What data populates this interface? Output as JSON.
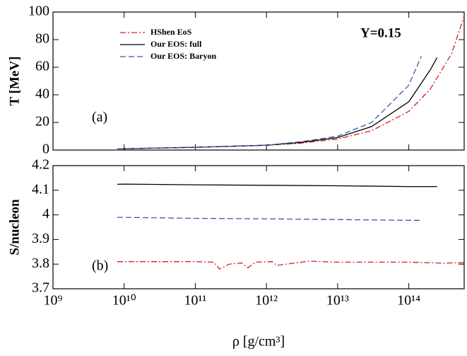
{
  "chart_data": [
    {
      "type": "line",
      "ylabel": "T [MeV]",
      "log_x": true,
      "annotations": [
        "Y=0.15",
        "(a)"
      ],
      "xlim": [
        1000000000.0,
        600000000000000.0
      ],
      "xticks": [
        1000000000.0,
        10000000000.0,
        100000000000.0,
        1000000000000.0,
        10000000000000.0,
        100000000000000.0
      ],
      "ylim": [
        0,
        100
      ],
      "yticks": [
        0,
        20,
        40,
        60,
        80,
        100
      ],
      "legend": "upper left",
      "series": [
        {
          "name": "HShen EoS",
          "color": "#d42020",
          "dash": "dash-dot",
          "x": [
            8000000000.0,
            10000000000.0,
            100000000000.0,
            1000000000000.0,
            3000000000000.0,
            10000000000000.0,
            30000000000000.0,
            100000000000000.0,
            200000000000000.0,
            400000000000000.0,
            600000000000000.0
          ],
          "values": [
            1,
            1,
            2,
            3.5,
            5,
            8,
            14,
            28,
            44,
            70,
            97
          ]
        },
        {
          "name": "Our EOS: full",
          "color": "#000000",
          "dash": "solid",
          "x": [
            8000000000.0,
            10000000000.0,
            100000000000.0,
            1000000000000.0,
            3000000000000.0,
            10000000000000.0,
            30000000000000.0,
            100000000000000.0,
            200000000000000.0,
            250000000000000.0
          ],
          "values": [
            1,
            1,
            2,
            3.5,
            5.5,
            9,
            17,
            35,
            58,
            67
          ]
        },
        {
          "name": "Our EOS: Baryon",
          "color": "#3a5aa8",
          "dash": "dashed",
          "x": [
            8000000000.0,
            10000000000.0,
            100000000000.0,
            1000000000000.0,
            3000000000000.0,
            10000000000000.0,
            30000000000000.0,
            100000000000000.0,
            150000000000000.0
          ],
          "values": [
            1,
            1,
            2,
            3.5,
            6,
            10,
            20,
            47,
            68
          ]
        }
      ]
    },
    {
      "type": "line",
      "ylabel": "S/nucleon",
      "xlabel": "ρ [g/cm³]",
      "log_x": true,
      "annotations": [
        "(b)"
      ],
      "xlim": [
        1000000000.0,
        600000000000000.0
      ],
      "xticks": [
        {
          "value": 1000000000.0,
          "label": "10⁹"
        },
        {
          "value": 10000000000.0,
          "label": "10¹⁰"
        },
        {
          "value": 100000000000.0,
          "label": "10¹¹"
        },
        {
          "value": 1000000000000.0,
          "label": "10¹²"
        },
        {
          "value": 10000000000000.0,
          "label": "10¹³"
        },
        {
          "value": 100000000000000.0,
          "label": "10¹⁴"
        }
      ],
      "ylim": [
        3.7,
        4.2
      ],
      "yticks": [
        3.7,
        3.8,
        3.9,
        4,
        4.1,
        4.2
      ],
      "series": [
        {
          "name": "HShen EoS",
          "color": "#d42020",
          "dash": "dash-dot",
          "x": [
            8000000000.0,
            100000000000.0,
            180000000000.0,
            220000000000.0,
            300000000000.0,
            450000000000.0,
            550000000000.0,
            700000000000.0,
            1200000000000.0,
            1400000000000.0,
            4000000000000.0,
            10000000000000.0,
            100000000000000.0,
            300000000000000.0,
            600000000000000.0
          ],
          "values": [
            3.81,
            3.81,
            3.808,
            3.78,
            3.8,
            3.805,
            3.785,
            3.808,
            3.81,
            3.795,
            3.812,
            3.808,
            3.808,
            3.804,
            3.806
          ]
        },
        {
          "name": "Our EOS: full",
          "color": "#000000",
          "dash": "solid",
          "x": [
            8000000000.0,
            10000000000.0,
            100000000000.0,
            1000000000000.0,
            10000000000000.0,
            100000000000000.0,
            250000000000000.0
          ],
          "values": [
            4.124,
            4.125,
            4.122,
            4.12,
            4.118,
            4.115,
            4.115
          ]
        },
        {
          "name": "Our EOS: Baryon",
          "color": "#3a5aa8",
          "dash": "dashed",
          "x": [
            8000000000.0,
            10000000000.0,
            100000000000.0,
            1000000000000.0,
            10000000000000.0,
            100000000000000.0,
            150000000000000.0
          ],
          "values": [
            3.99,
            3.99,
            3.986,
            3.984,
            3.981,
            3.978,
            3.978
          ]
        }
      ]
    }
  ]
}
